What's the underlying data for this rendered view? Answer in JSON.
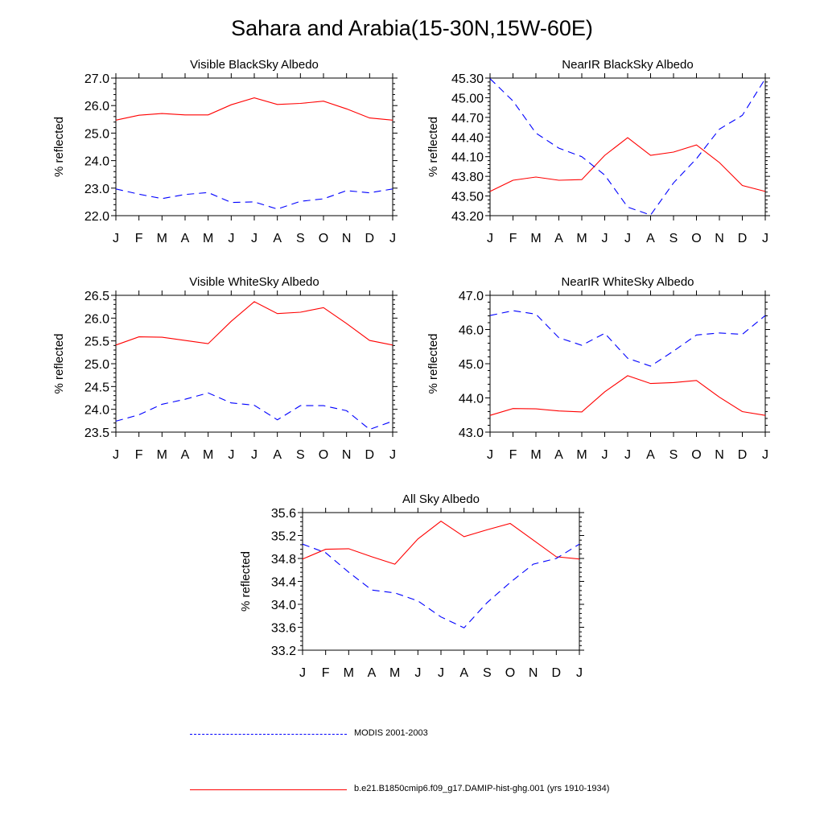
{
  "title": "Sahara and Arabia(15-30N,15W-60E)",
  "legend": [
    {
      "label": "MODIS 2001-2003",
      "color": "#0000ff",
      "style": "dashed"
    },
    {
      "label": "b.e21.B1850cmip6.f09_g17.DAMIP-hist-ghg.001 (yrs 1910-1934)",
      "color": "#ff0000",
      "style": "solid"
    }
  ],
  "chart_data": [
    {
      "type": "line",
      "title": "Visible BlackSky Albedo",
      "ylabel": "% reflected",
      "categories": [
        "J",
        "F",
        "M",
        "A",
        "M",
        "J",
        "J",
        "A",
        "S",
        "O",
        "N",
        "D",
        "J"
      ],
      "ylim": [
        22.0,
        27.0
      ],
      "yticks": [
        "22.0",
        "23.0",
        "24.0",
        "25.0",
        "26.0",
        "27.0"
      ],
      "series": [
        {
          "color": "#ff0000",
          "style": "solid",
          "values": [
            25.47,
            25.65,
            25.71,
            25.66,
            25.66,
            26.03,
            26.28,
            26.04,
            26.08,
            26.16,
            25.88,
            25.55,
            25.47
          ]
        },
        {
          "color": "#0000ff",
          "style": "dashed",
          "values": [
            22.97,
            22.78,
            22.62,
            22.77,
            22.84,
            22.48,
            22.5,
            22.24,
            22.52,
            22.61,
            22.91,
            22.83,
            22.97
          ]
        }
      ]
    },
    {
      "type": "line",
      "title": "NearIR BlackSky Albedo",
      "ylabel": "% reflected",
      "categories": [
        "J",
        "F",
        "M",
        "A",
        "M",
        "J",
        "J",
        "A",
        "S",
        "O",
        "N",
        "D",
        "J"
      ],
      "ylim": [
        43.2,
        45.3
      ],
      "yticks": [
        "43.20",
        "43.50",
        "43.80",
        "44.10",
        "44.40",
        "44.70",
        "45.00",
        "45.30"
      ],
      "series": [
        {
          "color": "#ff0000",
          "style": "solid",
          "values": [
            43.57,
            43.74,
            43.79,
            43.74,
            43.75,
            44.12,
            44.39,
            44.12,
            44.17,
            44.28,
            44.01,
            43.66,
            43.57
          ]
        },
        {
          "color": "#0000ff",
          "style": "dashed",
          "values": [
            45.29,
            44.95,
            44.46,
            44.23,
            44.1,
            43.82,
            43.33,
            43.21,
            43.7,
            44.07,
            44.52,
            44.73,
            45.29
          ]
        }
      ]
    },
    {
      "type": "line",
      "title": "Visible WhiteSky Albedo",
      "ylabel": "% reflected",
      "categories": [
        "J",
        "F",
        "M",
        "A",
        "M",
        "J",
        "J",
        "A",
        "S",
        "O",
        "N",
        "D",
        "J"
      ],
      "ylim": [
        23.5,
        26.5
      ],
      "yticks": [
        "23.5",
        "24.0",
        "24.5",
        "25.0",
        "25.5",
        "26.0",
        "26.5"
      ],
      "series": [
        {
          "color": "#ff0000",
          "style": "solid",
          "values": [
            25.41,
            25.59,
            25.58,
            25.51,
            25.44,
            25.93,
            26.36,
            26.1,
            26.13,
            26.23,
            25.88,
            25.51,
            25.41
          ]
        },
        {
          "color": "#0000ff",
          "style": "dashed",
          "values": [
            23.74,
            23.88,
            24.11,
            24.22,
            24.36,
            24.14,
            24.09,
            23.77,
            24.08,
            24.08,
            23.97,
            23.56,
            23.74
          ]
        }
      ]
    },
    {
      "type": "line",
      "title": "NearIR WhiteSky Albedo",
      "ylabel": "% reflected",
      "categories": [
        "J",
        "F",
        "M",
        "A",
        "M",
        "J",
        "J",
        "A",
        "S",
        "O",
        "N",
        "D",
        "J"
      ],
      "ylim": [
        43.0,
        47.0
      ],
      "yticks": [
        "43.0",
        "44.0",
        "45.0",
        "46.0",
        "47.0"
      ],
      "series": [
        {
          "color": "#ff0000",
          "style": "solid",
          "values": [
            43.49,
            43.69,
            43.68,
            43.62,
            43.59,
            44.18,
            44.65,
            44.42,
            44.45,
            44.51,
            44.02,
            43.6,
            43.49
          ]
        },
        {
          "color": "#0000ff",
          "style": "dashed",
          "values": [
            46.41,
            46.55,
            46.45,
            45.76,
            45.54,
            45.89,
            45.16,
            44.93,
            45.37,
            45.84,
            45.9,
            45.86,
            46.41
          ]
        }
      ]
    },
    {
      "type": "line",
      "title": "All Sky Albedo",
      "ylabel": "% reflected",
      "categories": [
        "J",
        "F",
        "M",
        "A",
        "M",
        "J",
        "J",
        "A",
        "S",
        "O",
        "N",
        "D",
        "J"
      ],
      "ylim": [
        33.2,
        35.6
      ],
      "yticks": [
        "33.2",
        "33.6",
        "34.0",
        "34.4",
        "34.8",
        "35.2",
        "35.6"
      ],
      "series": [
        {
          "color": "#ff0000",
          "style": "solid",
          "values": [
            34.79,
            34.96,
            34.97,
            34.83,
            34.7,
            35.14,
            35.45,
            35.18,
            35.3,
            35.41,
            35.12,
            34.83,
            34.79
          ]
        },
        {
          "color": "#0000ff",
          "style": "dashed",
          "values": [
            35.05,
            34.9,
            34.56,
            34.25,
            34.2,
            34.06,
            33.78,
            33.59,
            34.03,
            34.38,
            34.7,
            34.8,
            35.05
          ]
        }
      ]
    }
  ]
}
